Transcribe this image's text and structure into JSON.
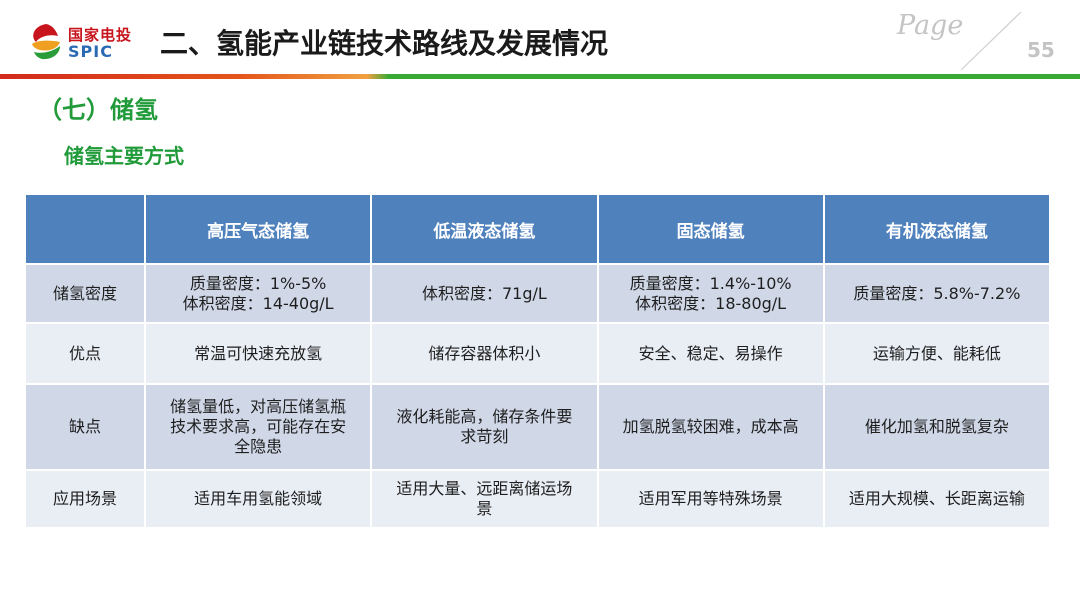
{
  "logo": {
    "cn_text": "国家电投",
    "en_text": "SPIC"
  },
  "header": {
    "title": "二、氢能产业链技术路线及发展情况",
    "page_word": "Page",
    "page_number": "55"
  },
  "section": {
    "title": "（七）储氢",
    "subtitle": "储氢主要方式"
  },
  "colors": {
    "header_blue": "#4f81bd",
    "green": "#219a3a",
    "logo_red": "#c8151d",
    "logo_blue": "#2a6ab3"
  },
  "table": {
    "headers": [
      "",
      "高压气态储氢",
      "低温液态储氢",
      "固态储氢",
      "有机液态储氢"
    ],
    "rows": [
      {
        "label": "储氢密度",
        "cells": [
          [
            "质量密度：1%-5%",
            "体积密度：14-40g/L"
          ],
          [
            "体积密度：71g/L"
          ],
          [
            "质量密度：1.4%-10%",
            "体积密度：18-80g/L"
          ],
          [
            "质量密度：5.8%-7.2%"
          ]
        ]
      },
      {
        "label": "优点",
        "cells": [
          [
            "常温可快速充放氢"
          ],
          [
            "储存容器体积小"
          ],
          [
            "安全、稳定、易操作"
          ],
          [
            "运输方便、能耗低"
          ]
        ]
      },
      {
        "label": "缺点",
        "cells": [
          [
            "储氢量低，对高压储氢瓶",
            "技术要求高，可能存在安",
            "全隐患"
          ],
          [
            "液化耗能高，储存条件要",
            "求苛刻"
          ],
          [
            "加氢脱氢较困难，成本高"
          ],
          [
            "催化加氢和脱氢复杂"
          ]
        ]
      },
      {
        "label": "应用场景",
        "cells": [
          [
            "适用车用氢能领域"
          ],
          [
            "适用大量、远距离储运场",
            "景"
          ],
          [
            "适用军用等特殊场景"
          ],
          [
            "适用大规模、长距离运输"
          ]
        ]
      }
    ]
  }
}
